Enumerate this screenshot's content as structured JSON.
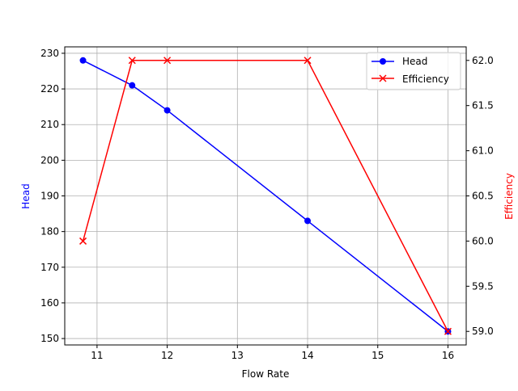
{
  "chart_data": {
    "type": "line",
    "title": "",
    "xlabel": "Flow Rate",
    "x": [
      10.8,
      11.5,
      12,
      14,
      16
    ],
    "xlim": [
      10.54,
      16.26
    ],
    "xticks": [
      11,
      12,
      13,
      14,
      15,
      16
    ],
    "grid": true,
    "legend_position": "upper right",
    "series": [
      {
        "name": "Head",
        "axis": "left",
        "color": "#0000ff",
        "marker": "circle",
        "values": [
          228,
          221,
          214,
          183,
          152
        ]
      },
      {
        "name": "Efficiency",
        "axis": "right",
        "color": "#ff0000",
        "marker": "x",
        "values": [
          60,
          62,
          62,
          62,
          59
        ]
      }
    ],
    "y_left": {
      "label": "Head",
      "color": "#0000ff",
      "ylim": [
        148.2,
        231.8
      ],
      "ticks": [
        150,
        160,
        170,
        180,
        190,
        200,
        210,
        220,
        230
      ]
    },
    "y_right": {
      "label": "Efficiency",
      "color": "#ff0000",
      "ylim": [
        58.85,
        62.15
      ],
      "ticks": [
        "59.0",
        "59.5",
        "60.0",
        "60.5",
        "61.0",
        "61.5",
        "62.0"
      ]
    }
  }
}
